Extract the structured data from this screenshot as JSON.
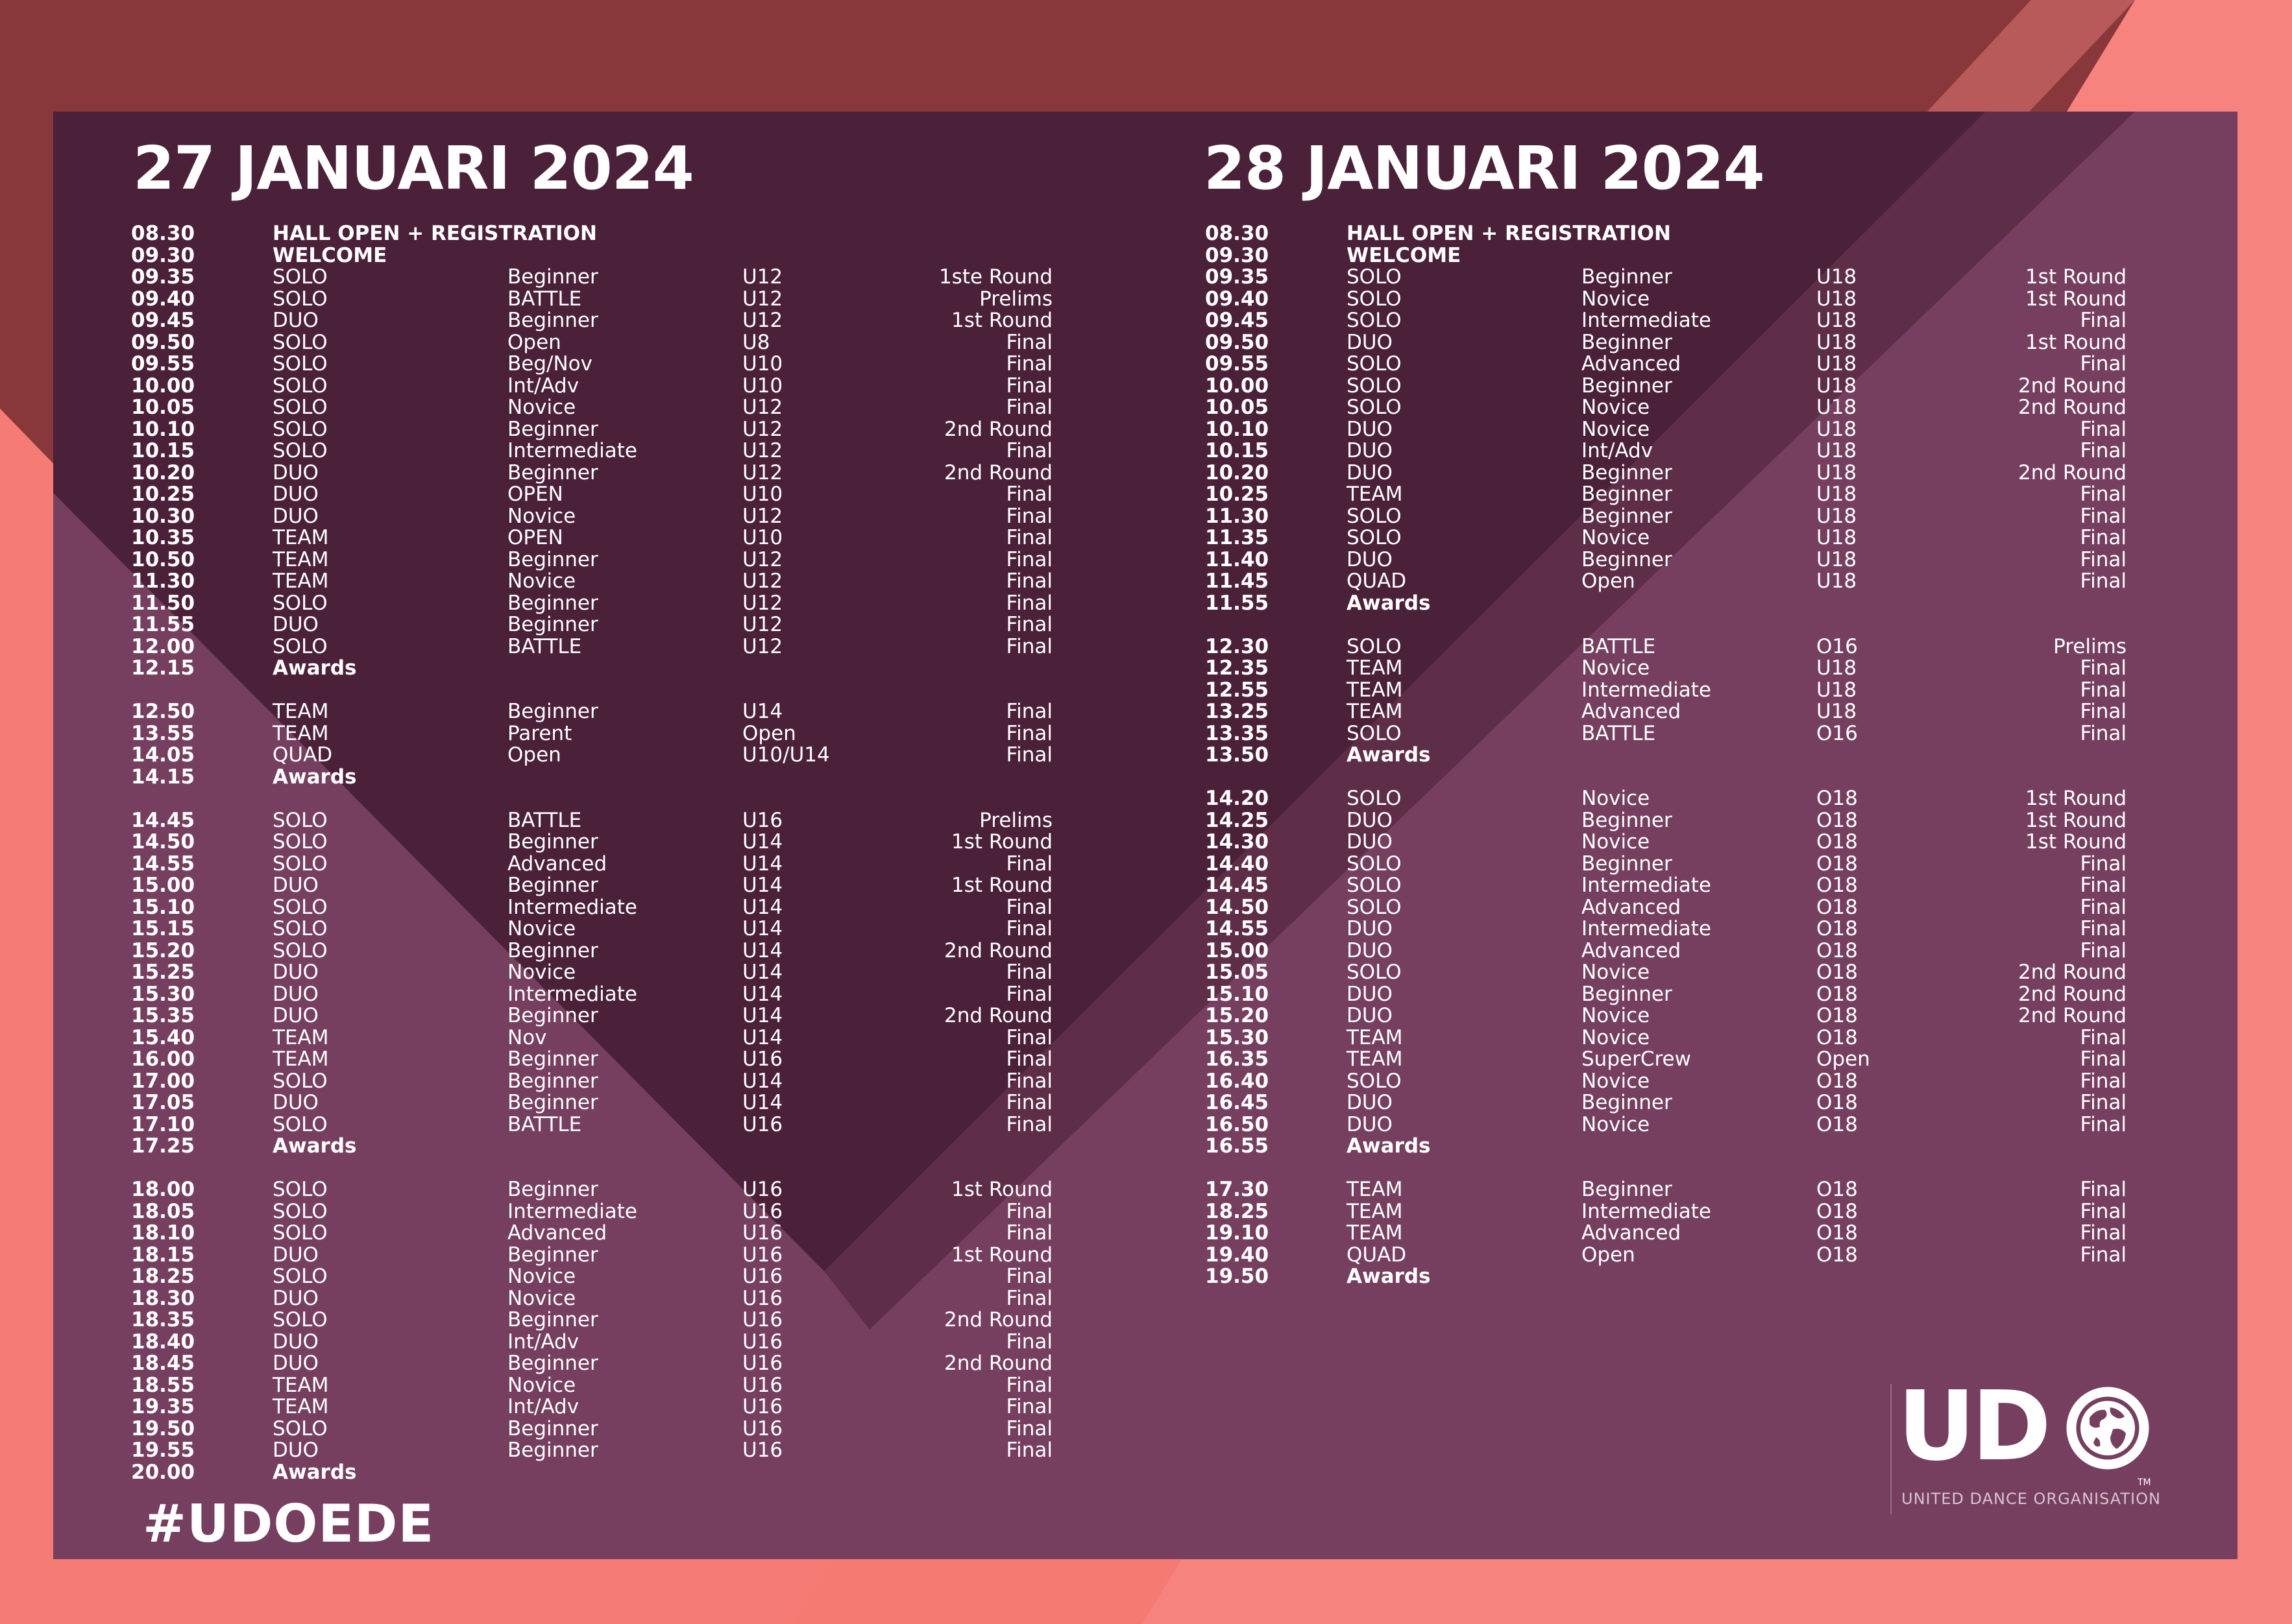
{
  "day1": {
    "title": "27 JANUARI 2024",
    "rows": [
      {
        "time": "08.30",
        "event": "HALL OPEN + REGISTRATION",
        "level": "",
        "age": "",
        "round": "",
        "special": true
      },
      {
        "time": "09.30",
        "event": "WELCOME",
        "level": "",
        "age": "",
        "round": "",
        "special": true
      },
      {
        "time": "09.35",
        "event": "SOLO",
        "level": "Beginner",
        "age": "U12",
        "round": "1ste Round"
      },
      {
        "time": "09.40",
        "event": "SOLO",
        "level": "BATTLE",
        "age": "U12",
        "round": "Prelims"
      },
      {
        "time": "09.45",
        "event": "DUO",
        "level": "Beginner",
        "age": "U12",
        "round": "1st Round"
      },
      {
        "time": "09.50",
        "event": "SOLO",
        "level": "Open",
        "age": "U8",
        "round": "Final"
      },
      {
        "time": "09.55",
        "event": "SOLO",
        "level": "Beg/Nov",
        "age": "U10",
        "round": "Final"
      },
      {
        "time": "10.00",
        "event": "SOLO",
        "level": "Int/Adv",
        "age": "U10",
        "round": "Final"
      },
      {
        "time": "10.05",
        "event": "SOLO",
        "level": "Novice",
        "age": "U12",
        "round": "Final"
      },
      {
        "time": "10.10",
        "event": "SOLO",
        "level": "Beginner",
        "age": "U12",
        "round": "2nd Round"
      },
      {
        "time": "10.15",
        "event": "SOLO",
        "level": "Intermediate",
        "age": "U12",
        "round": "Final"
      },
      {
        "time": "10.20",
        "event": "DUO",
        "level": "Beginner",
        "age": "U12",
        "round": "2nd Round"
      },
      {
        "time": "10.25",
        "event": "DUO",
        "level": "OPEN",
        "age": "U10",
        "round": "Final"
      },
      {
        "time": "10.30",
        "event": "DUO",
        "level": "Novice",
        "age": "U12",
        "round": "Final"
      },
      {
        "time": "10.35",
        "event": "TEAM",
        "level": "OPEN",
        "age": "U10",
        "round": "Final"
      },
      {
        "time": "10.50",
        "event": "TEAM",
        "level": "Beginner",
        "age": "U12",
        "round": "Final"
      },
      {
        "time": "11.30",
        "event": "TEAM",
        "level": "Novice",
        "age": "U12",
        "round": "Final"
      },
      {
        "time": "11.50",
        "event": "SOLO",
        "level": "Beginner",
        "age": "U12",
        "round": "Final"
      },
      {
        "time": "11.55",
        "event": "DUO",
        "level": "Beginner",
        "age": "U12",
        "round": "Final"
      },
      {
        "time": "12.00",
        "event": "SOLO",
        "level": "BATTLE",
        "age": "U12",
        "round": "Final"
      },
      {
        "time": "12.15",
        "event": "Awards",
        "level": "",
        "age": "",
        "round": "",
        "special": true
      },
      {
        "gap": true
      },
      {
        "time": "12.50",
        "event": "TEAM",
        "level": "Beginner",
        "age": "U14",
        "round": "Final"
      },
      {
        "time": "13.55",
        "event": "TEAM",
        "level": "Parent",
        "age": "Open",
        "round": "Final"
      },
      {
        "time": "14.05",
        "event": "QUAD",
        "level": "Open",
        "age": "U10/U14",
        "round": "Final"
      },
      {
        "time": "14.15",
        "event": "Awards",
        "level": "",
        "age": "",
        "round": "",
        "special": true
      },
      {
        "gap": true
      },
      {
        "time": "14.45",
        "event": "SOLO",
        "level": "BATTLE",
        "age": "U16",
        "round": "Prelims"
      },
      {
        "time": "14.50",
        "event": "SOLO",
        "level": "Beginner",
        "age": "U14",
        "round": "1st Round"
      },
      {
        "time": "14.55",
        "event": "SOLO",
        "level": "Advanced",
        "age": "U14",
        "round": "Final"
      },
      {
        "time": "15.00",
        "event": "DUO",
        "level": "Beginner",
        "age": "U14",
        "round": "1st Round"
      },
      {
        "time": "15.10",
        "event": "SOLO",
        "level": "Intermediate",
        "age": "U14",
        "round": "Final"
      },
      {
        "time": "15.15",
        "event": "SOLO",
        "level": "Novice",
        "age": "U14",
        "round": "Final"
      },
      {
        "time": "15.20",
        "event": "SOLO",
        "level": "Beginner",
        "age": "U14",
        "round": "2nd Round"
      },
      {
        "time": "15.25",
        "event": "DUO",
        "level": "Novice",
        "age": "U14",
        "round": "Final"
      },
      {
        "time": "15.30",
        "event": "DUO",
        "level": "Intermediate",
        "age": "U14",
        "round": "Final"
      },
      {
        "time": "15.35",
        "event": "DUO",
        "level": "Beginner",
        "age": "U14",
        "round": "2nd Round"
      },
      {
        "time": "15.40",
        "event": "TEAM",
        "level": "Nov",
        "age": "U14",
        "round": "Final"
      },
      {
        "time": "16.00",
        "event": "TEAM",
        "level": "Beginner",
        "age": "U16",
        "round": "Final"
      },
      {
        "time": "17.00",
        "event": "SOLO",
        "level": "Beginner",
        "age": "U14",
        "round": "Final"
      },
      {
        "time": "17.05",
        "event": "DUO",
        "level": "Beginner",
        "age": "U14",
        "round": "Final"
      },
      {
        "time": "17.10",
        "event": "SOLO",
        "level": "BATTLE",
        "age": "U16",
        "round": "Final"
      },
      {
        "time": "17.25",
        "event": "Awards",
        "level": "",
        "age": "",
        "round": "",
        "special": true
      },
      {
        "gap": true
      },
      {
        "time": "18.00",
        "event": "SOLO",
        "level": "Beginner",
        "age": "U16",
        "round": "1st Round"
      },
      {
        "time": "18.05",
        "event": "SOLO",
        "level": "Intermediate",
        "age": "U16",
        "round": "Final"
      },
      {
        "time": "18.10",
        "event": "SOLO",
        "level": "Advanced",
        "age": "U16",
        "round": "Final"
      },
      {
        "time": "18.15",
        "event": "DUO",
        "level": "Beginner",
        "age": "U16",
        "round": "1st Round"
      },
      {
        "time": "18.25",
        "event": "SOLO",
        "level": "Novice",
        "age": "U16",
        "round": "Final"
      },
      {
        "time": "18.30",
        "event": "DUO",
        "level": "Novice",
        "age": "U16",
        "round": "Final"
      },
      {
        "time": "18.35",
        "event": "SOLO",
        "level": "Beginner",
        "age": "U16",
        "round": "2nd Round"
      },
      {
        "time": "18.40",
        "event": "DUO",
        "level": "Int/Adv",
        "age": "U16",
        "round": "Final"
      },
      {
        "time": "18.45",
        "event": "DUO",
        "level": "Beginner",
        "age": "U16",
        "round": "2nd Round"
      },
      {
        "time": "18.55",
        "event": "TEAM",
        "level": "Novice",
        "age": "U16",
        "round": "Final"
      },
      {
        "time": "19.35",
        "event": "TEAM",
        "level": "Int/Adv",
        "age": "U16",
        "round": "Final"
      },
      {
        "time": "19.50",
        "event": "SOLO",
        "level": "Beginner",
        "age": "U16",
        "round": "Final"
      },
      {
        "time": "19.55",
        "event": "DUO",
        "level": "Beginner",
        "age": "U16",
        "round": "Final"
      },
      {
        "time": "20.00",
        "event": "Awards",
        "level": "",
        "age": "",
        "round": "",
        "special": true
      }
    ]
  },
  "day2": {
    "title": "28 JANUARI 2024",
    "rows": [
      {
        "time": "08.30",
        "event": "HALL OPEN + REGISTRATION",
        "level": "",
        "age": "",
        "round": "",
        "special": true
      },
      {
        "time": "09.30",
        "event": "WELCOME",
        "level": "",
        "age": "",
        "round": "",
        "special": true
      },
      {
        "time": "09.35",
        "event": "SOLO",
        "level": "Beginner",
        "age": "U18",
        "round": "1st Round"
      },
      {
        "time": "09.40",
        "event": "SOLO",
        "level": "Novice",
        "age": "U18",
        "round": "1st Round"
      },
      {
        "time": "09.45",
        "event": "SOLO",
        "level": "Intermediate",
        "age": "U18",
        "round": "Final"
      },
      {
        "time": "09.50",
        "event": "DUO",
        "level": "Beginner",
        "age": "U18",
        "round": "1st Round"
      },
      {
        "time": "09.55",
        "event": "SOLO",
        "level": "Advanced",
        "age": "U18",
        "round": "Final"
      },
      {
        "time": "10.00",
        "event": "SOLO",
        "level": "Beginner",
        "age": "U18",
        "round": "2nd Round"
      },
      {
        "time": "10.05",
        "event": "SOLO",
        "level": "Novice",
        "age": "U18",
        "round": "2nd Round"
      },
      {
        "time": "10.10",
        "event": "DUO",
        "level": "Novice",
        "age": "U18",
        "round": "Final"
      },
      {
        "time": "10.15",
        "event": "DUO",
        "level": "Int/Adv",
        "age": "U18",
        "round": "Final"
      },
      {
        "time": "10.20",
        "event": "DUO",
        "level": "Beginner",
        "age": "U18",
        "round": "2nd Round"
      },
      {
        "time": "10.25",
        "event": "TEAM",
        "level": "Beginner",
        "age": "U18",
        "round": "Final"
      },
      {
        "time": "11.30",
        "event": "SOLO",
        "level": "Beginner",
        "age": "U18",
        "round": "Final"
      },
      {
        "time": "11.35",
        "event": "SOLO",
        "level": "Novice",
        "age": "U18",
        "round": "Final"
      },
      {
        "time": "11.40",
        "event": "DUO",
        "level": "Beginner",
        "age": "U18",
        "round": "Final"
      },
      {
        "time": "11.45",
        "event": "QUAD",
        "level": "Open",
        "age": "U18",
        "round": "Final"
      },
      {
        "time": "11.55",
        "event": "Awards",
        "level": "",
        "age": "",
        "round": "",
        "special": true
      },
      {
        "gap": true
      },
      {
        "time": "12.30",
        "event": "SOLO",
        "level": "BATTLE",
        "age": "O16",
        "round": "Prelims"
      },
      {
        "time": "12.35",
        "event": "TEAM",
        "level": "Novice",
        "age": "U18",
        "round": "Final"
      },
      {
        "time": "12.55",
        "event": "TEAM",
        "level": "Intermediate",
        "age": "U18",
        "round": "Final"
      },
      {
        "time": "13.25",
        "event": "TEAM",
        "level": "Advanced",
        "age": "U18",
        "round": "Final"
      },
      {
        "time": "13.35",
        "event": "SOLO",
        "level": "BATTLE",
        "age": "O16",
        "round": "Final"
      },
      {
        "time": "13.50",
        "event": "Awards",
        "level": "",
        "age": "",
        "round": "",
        "special": true
      },
      {
        "gap": true
      },
      {
        "time": "14.20",
        "event": "SOLO",
        "level": "Novice",
        "age": "O18",
        "round": "1st Round"
      },
      {
        "time": "14.25",
        "event": "DUO",
        "level": "Beginner",
        "age": "O18",
        "round": "1st Round"
      },
      {
        "time": "14.30",
        "event": "DUO",
        "level": "Novice",
        "age": "O18",
        "round": "1st Round"
      },
      {
        "time": "14.40",
        "event": "SOLO",
        "level": "Beginner",
        "age": "O18",
        "round": "Final"
      },
      {
        "time": "14.45",
        "event": "SOLO",
        "level": "Intermediate",
        "age": "O18",
        "round": "Final"
      },
      {
        "time": "14.50",
        "event": "SOLO",
        "level": "Advanced",
        "age": "O18",
        "round": "Final"
      },
      {
        "time": "14.55",
        "event": "DUO",
        "level": "Intermediate",
        "age": "O18",
        "round": "Final"
      },
      {
        "time": "15.00",
        "event": "DUO",
        "level": "Advanced",
        "age": "O18",
        "round": "Final"
      },
      {
        "time": "15.05",
        "event": "SOLO",
        "level": "Novice",
        "age": "O18",
        "round": "2nd Round"
      },
      {
        "time": "15.10",
        "event": "DUO",
        "level": "Beginner",
        "age": "O18",
        "round": "2nd Round"
      },
      {
        "time": "15.20",
        "event": "DUO",
        "level": "Novice",
        "age": "O18",
        "round": "2nd Round"
      },
      {
        "time": "15.30",
        "event": "TEAM",
        "level": "Novice",
        "age": "O18",
        "round": "Final"
      },
      {
        "time": "16.35",
        "event": "TEAM",
        "level": "SuperCrew",
        "age": "Open",
        "round": "Final"
      },
      {
        "time": "16.40",
        "event": "SOLO",
        "level": "Novice",
        "age": "O18",
        "round": "Final"
      },
      {
        "time": "16.45",
        "event": "DUO",
        "level": "Beginner",
        "age": "O18",
        "round": "Final"
      },
      {
        "time": "16.50",
        "event": "DUO",
        "level": "Novice",
        "age": "O18",
        "round": "Final"
      },
      {
        "time": "16.55",
        "event": "Awards",
        "level": "",
        "age": "",
        "round": "",
        "special": true
      },
      {
        "gap": true
      },
      {
        "time": "17.30",
        "event": "TEAM",
        "level": "Beginner",
        "age": "O18",
        "round": "Final"
      },
      {
        "time": "18.25",
        "event": "TEAM",
        "level": "Intermediate",
        "age": "O18",
        "round": "Final"
      },
      {
        "time": "19.10",
        "event": "TEAM",
        "level": "Advanced",
        "age": "O18",
        "round": "Final"
      },
      {
        "time": "19.40",
        "event": "QUAD",
        "level": "Open",
        "age": "O18",
        "round": "Final"
      },
      {
        "time": "19.50",
        "event": "Awards",
        "level": "",
        "age": "",
        "round": "",
        "special": true
      }
    ]
  },
  "footer": {
    "hashtag": "#UDOEDE"
  },
  "logo": {
    "text": "UD",
    "trademark": "TM",
    "subtitle": "UNITED DANCE ORGANISATION",
    "icon": "globe-icon"
  },
  "colors": {
    "background_top": "#88383b",
    "background_bottom": "#f57a72",
    "panel": "#753f5d",
    "panel_dark": "#4b2039",
    "text": "#ffffff"
  }
}
